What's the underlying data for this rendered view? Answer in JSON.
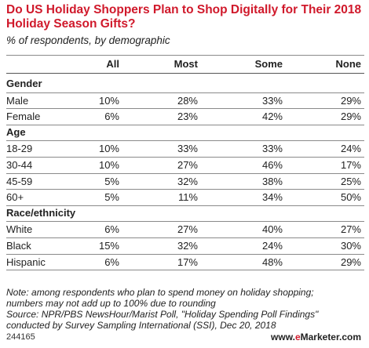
{
  "chart_data": {
    "type": "table",
    "title": "Do US Holiday Shoppers Plan to Shop Digitally for Their 2018 Holiday Season Gifts?",
    "subtitle": "% of respondents, by demographic",
    "columns": [
      "All",
      "Most",
      "Some",
      "None"
    ],
    "groups": [
      {
        "name": "Gender",
        "rows": [
          {
            "label": "Male",
            "values": [
              "10%",
              "28%",
              "33%",
              "29%"
            ]
          },
          {
            "label": "Female",
            "values": [
              "6%",
              "23%",
              "42%",
              "29%"
            ]
          }
        ]
      },
      {
        "name": "Age",
        "rows": [
          {
            "label": "18-29",
            "values": [
              "10%",
              "33%",
              "33%",
              "24%"
            ]
          },
          {
            "label": "30-44",
            "values": [
              "10%",
              "27%",
              "46%",
              "17%"
            ]
          },
          {
            "label": "45-59",
            "values": [
              "5%",
              "32%",
              "38%",
              "25%"
            ]
          },
          {
            "label": "60+",
            "values": [
              "5%",
              "11%",
              "34%",
              "50%"
            ]
          }
        ]
      },
      {
        "name": "Race/ethnicity",
        "rows": [
          {
            "label": "White",
            "values": [
              "6%",
              "27%",
              "40%",
              "27%"
            ]
          },
          {
            "label": "Black",
            "values": [
              "15%",
              "32%",
              "24%",
              "30%"
            ]
          },
          {
            "label": "Hispanic",
            "values": [
              "6%",
              "17%",
              "48%",
              "29%"
            ]
          }
        ]
      }
    ]
  },
  "notes": [
    "Note: among respondents who plan to spend money on holiday shopping;",
    "numbers may not add up to 100% due to rounding",
    "Source: NPR/PBS NewsHour/Marist Poll, \"Holiday Spending Poll Findings\"",
    "conducted by Survey Sampling International (SSI), Dec 20, 2018"
  ],
  "footer": {
    "chart_id": "244165",
    "brand_prefix": "www.",
    "brand_e": "e",
    "brand_suffix": "Marketer.com"
  },
  "colors": {
    "title": "#d0192b",
    "text": "#222222",
    "rule": "#8a8a8a"
  }
}
